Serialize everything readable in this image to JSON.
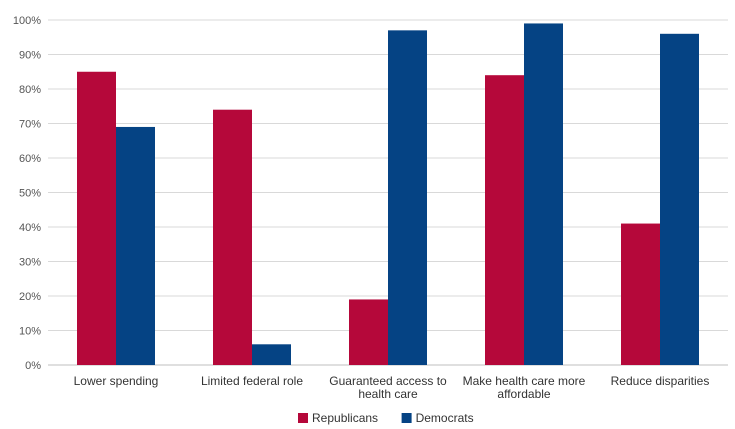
{
  "chart_data": {
    "type": "bar",
    "title": "",
    "xlabel": "",
    "ylabel": "",
    "ylim": [
      0,
      100
    ],
    "y_ticks": [
      "0%",
      "10%",
      "20%",
      "30%",
      "40%",
      "50%",
      "60%",
      "70%",
      "80%",
      "90%",
      "100%"
    ],
    "grid": true,
    "legend_position": "bottom",
    "categories": [
      [
        "Lower spending"
      ],
      [
        "Limited federal role"
      ],
      [
        "Guaranteed access to",
        "health care"
      ],
      [
        "Make health care more",
        "affordable"
      ],
      [
        "Reduce disparities"
      ]
    ],
    "series": [
      {
        "name": "Republicans",
        "color": "#b5083a",
        "values": [
          85,
          74,
          19,
          84,
          41
        ]
      },
      {
        "name": "Democrats",
        "color": "#054384",
        "values": [
          69,
          6,
          97,
          99,
          96
        ]
      }
    ]
  }
}
